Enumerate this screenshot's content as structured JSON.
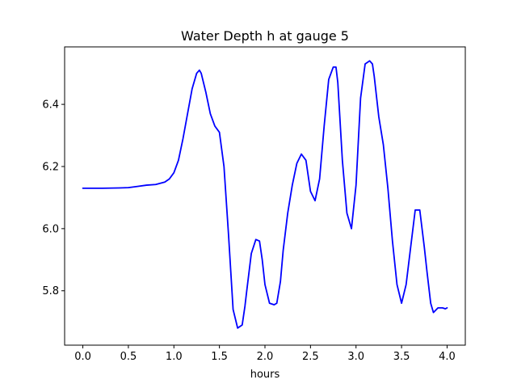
{
  "chart_data": {
    "type": "line",
    "title": "Water Depth h at gauge 5",
    "xlabel": "hours",
    "ylabel": "",
    "xlim": [
      -0.2,
      4.2
    ],
    "ylim": [
      5.625,
      6.585
    ],
    "xticks": [
      0.0,
      0.5,
      1.0,
      1.5,
      2.0,
      2.5,
      3.0,
      3.5,
      4.0
    ],
    "xtick_labels": [
      "0.0",
      "0.5",
      "1.0",
      "1.5",
      "2.0",
      "2.5",
      "3.0",
      "3.5",
      "4.0"
    ],
    "yticks": [
      5.8,
      6.0,
      6.2,
      6.4
    ],
    "ytick_labels": [
      "5.8",
      "6.0",
      "6.2",
      "6.4"
    ],
    "grid": false,
    "series": [
      {
        "color": "#0000ff",
        "x": [
          0.0,
          0.2,
          0.4,
          0.5,
          0.6,
          0.7,
          0.8,
          0.9,
          0.95,
          1.0,
          1.05,
          1.1,
          1.15,
          1.2,
          1.25,
          1.28,
          1.3,
          1.35,
          1.4,
          1.45,
          1.5,
          1.55,
          1.6,
          1.65,
          1.7,
          1.75,
          1.78,
          1.8,
          1.85,
          1.9,
          1.94,
          1.97,
          2.0,
          2.05,
          2.1,
          2.13,
          2.17,
          2.2,
          2.25,
          2.3,
          2.35,
          2.4,
          2.45,
          2.5,
          2.55,
          2.6,
          2.65,
          2.7,
          2.75,
          2.78,
          2.8,
          2.85,
          2.9,
          2.95,
          3.0,
          3.05,
          3.1,
          3.15,
          3.18,
          3.2,
          3.25,
          3.3,
          3.35,
          3.4,
          3.45,
          3.5,
          3.55,
          3.6,
          3.65,
          3.7,
          3.75,
          3.78,
          3.82,
          3.85,
          3.9,
          3.95,
          3.98,
          4.0
        ],
        "y": [
          6.13,
          6.13,
          6.131,
          6.132,
          6.136,
          6.14,
          6.142,
          6.15,
          6.16,
          6.18,
          6.22,
          6.29,
          6.37,
          6.45,
          6.5,
          6.51,
          6.5,
          6.44,
          6.37,
          6.33,
          6.31,
          6.2,
          5.98,
          5.74,
          5.68,
          5.69,
          5.75,
          5.8,
          5.92,
          5.965,
          5.96,
          5.9,
          5.82,
          5.76,
          5.755,
          5.76,
          5.83,
          5.93,
          6.05,
          6.14,
          6.21,
          6.24,
          6.22,
          6.12,
          6.09,
          6.16,
          6.33,
          6.48,
          6.52,
          6.52,
          6.47,
          6.22,
          6.05,
          6.0,
          6.14,
          6.42,
          6.53,
          6.54,
          6.53,
          6.49,
          6.36,
          6.27,
          6.13,
          5.96,
          5.82,
          5.76,
          5.82,
          5.94,
          6.06,
          6.06,
          5.94,
          5.86,
          5.76,
          5.73,
          5.745,
          5.745,
          5.742,
          5.745
        ]
      }
    ]
  }
}
